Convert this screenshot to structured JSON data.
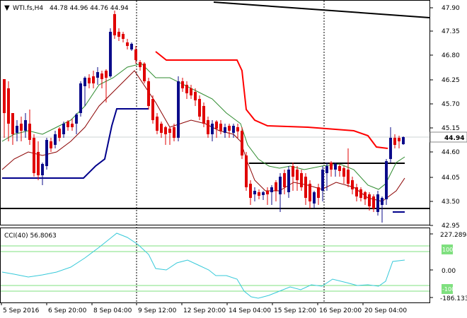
{
  "main_panel": {
    "symbol_label": "WTI.fs,H4",
    "ohlc": "44.78 44.96 44.76 44.94",
    "price_axis": [
      "47.90",
      "47.35",
      "46.80",
      "46.25",
      "45.70",
      "45.15",
      "44.60",
      "44.05",
      "43.50",
      "42.95"
    ],
    "current_price": "44.94"
  },
  "cci_panel": {
    "label": "CCI(40) 56.8063",
    "axis_labels": [
      "227.2894",
      "0.00",
      "-186.133"
    ],
    "level_high": "100",
    "level_low": "-100"
  },
  "time_axis": [
    "5 Sep 2016",
    "6 Sep 20:00",
    "8 Sep 04:00",
    "9 Sep 12:00",
    "12 Sep 20:00",
    "14 Sep 04:00",
    "15 Sep 12:00",
    "16 Sep 20:00",
    "20 Sep 04:00"
  ],
  "colors": {
    "bull": "#0b0b8a",
    "bear": "#e00000",
    "sma_red": "#ff0000",
    "ma_green": "#2e8b2e",
    "ma_darkred": "#8b0000",
    "stop_blue": "#00008b",
    "cci": "#36c9d9",
    "cci_level": "#7fe07f"
  }
}
